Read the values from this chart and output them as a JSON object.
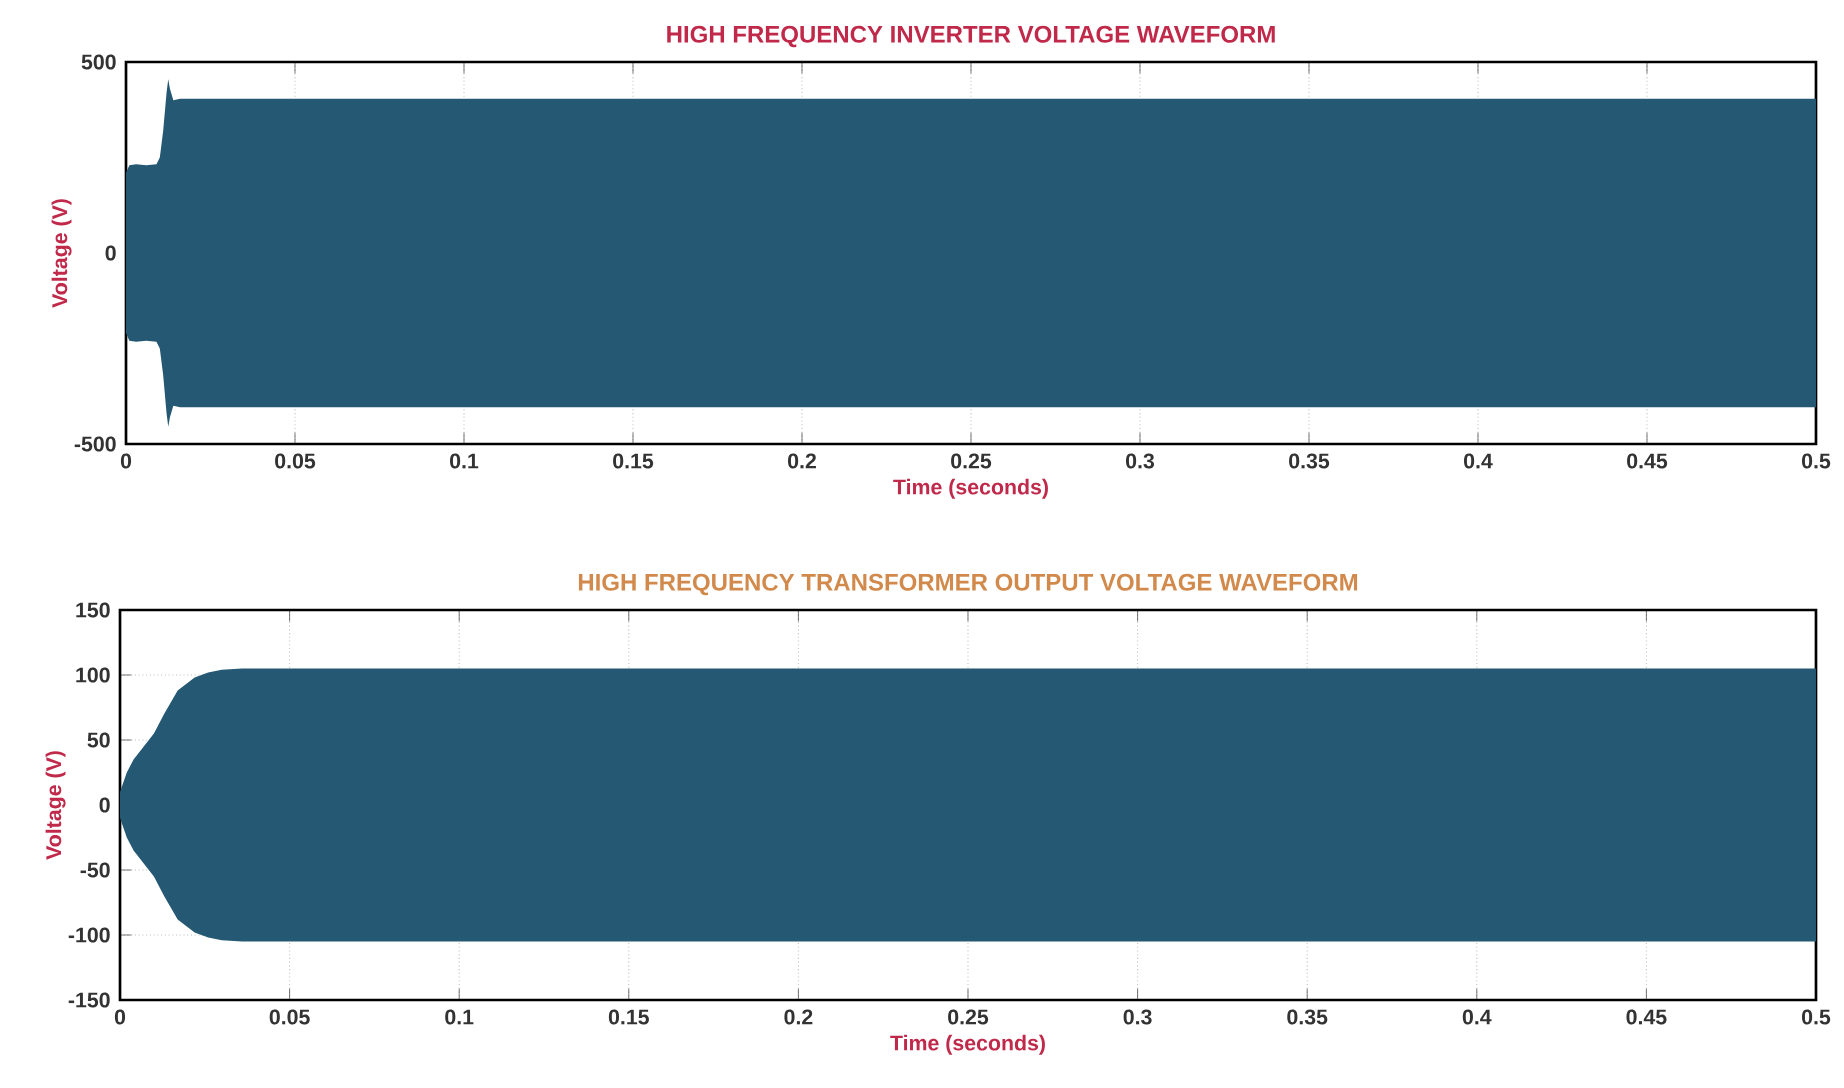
{
  "chart_data": [
    {
      "type": "area",
      "title": "HIGH FREQUENCY INVERTER VOLTAGE WAVEFORM",
      "xlabel": "Time (seconds)",
      "ylabel": "Voltage (V)",
      "xlim": [
        0,
        0.5
      ],
      "ylim": [
        -500,
        500
      ],
      "xticks": [
        0,
        0.05,
        0.1,
        0.15,
        0.2,
        0.25,
        0.3,
        0.35,
        0.4,
        0.45,
        0.5
      ],
      "yticks": [
        -500,
        0,
        500
      ],
      "grid": true,
      "series": [
        {
          "color": "#245873",
          "x": [
            0,
            0.001,
            0.003,
            0.006,
            0.009,
            0.01,
            0.011,
            0.012,
            0.0125,
            0.013,
            0.014,
            0.016,
            0.1,
            0.2,
            0.3,
            0.4,
            0.5
          ],
          "values": [
            210,
            230,
            232,
            230,
            232,
            250,
            320,
            420,
            455,
            430,
            400,
            404,
            404,
            404,
            404,
            404,
            404
          ]
        },
        {
          "color": "#245873",
          "x": [
            0,
            0.001,
            0.003,
            0.006,
            0.009,
            0.01,
            0.011,
            0.012,
            0.0125,
            0.013,
            0.014,
            0.016,
            0.1,
            0.2,
            0.3,
            0.4,
            0.5
          ],
          "values": [
            -210,
            -230,
            -232,
            -230,
            -232,
            -250,
            -320,
            -420,
            -455,
            -430,
            -400,
            -404,
            -404,
            -404,
            -404,
            -404,
            -404
          ]
        }
      ]
    },
    {
      "type": "area",
      "title": "HIGH FREQUENCY TRANSFORMER OUTPUT VOLTAGE WAVEFORM",
      "xlabel": "Time (seconds)",
      "ylabel": "Voltage (V)",
      "xlim": [
        0,
        0.5
      ],
      "ylim": [
        -150,
        150
      ],
      "xticks": [
        0,
        0.05,
        0.1,
        0.15,
        0.2,
        0.25,
        0.3,
        0.35,
        0.4,
        0.45,
        0.5
      ],
      "yticks": [
        -150,
        -100,
        -50,
        0,
        50,
        100,
        150
      ],
      "grid": true,
      "series": [
        {
          "color": "#245873",
          "x": [
            0,
            0.002,
            0.004,
            0.007,
            0.01,
            0.013,
            0.017,
            0.022,
            0.026,
            0.03,
            0.036,
            0.043,
            0.1,
            0.2,
            0.3,
            0.4,
            0.5
          ],
          "values": [
            10,
            25,
            35,
            45,
            55,
            70,
            88,
            98,
            102,
            104,
            105,
            105,
            105,
            105,
            105,
            105,
            105
          ]
        },
        {
          "color": "#245873",
          "x": [
            0,
            0.002,
            0.004,
            0.007,
            0.01,
            0.013,
            0.017,
            0.022,
            0.026,
            0.03,
            0.036,
            0.043,
            0.1,
            0.2,
            0.3,
            0.4,
            0.5
          ],
          "values": [
            -10,
            -25,
            -35,
            -45,
            -55,
            -70,
            -88,
            -98,
            -102,
            -104,
            -105,
            -105,
            -105,
            -105,
            -105,
            -105,
            -105
          ]
        }
      ]
    }
  ]
}
